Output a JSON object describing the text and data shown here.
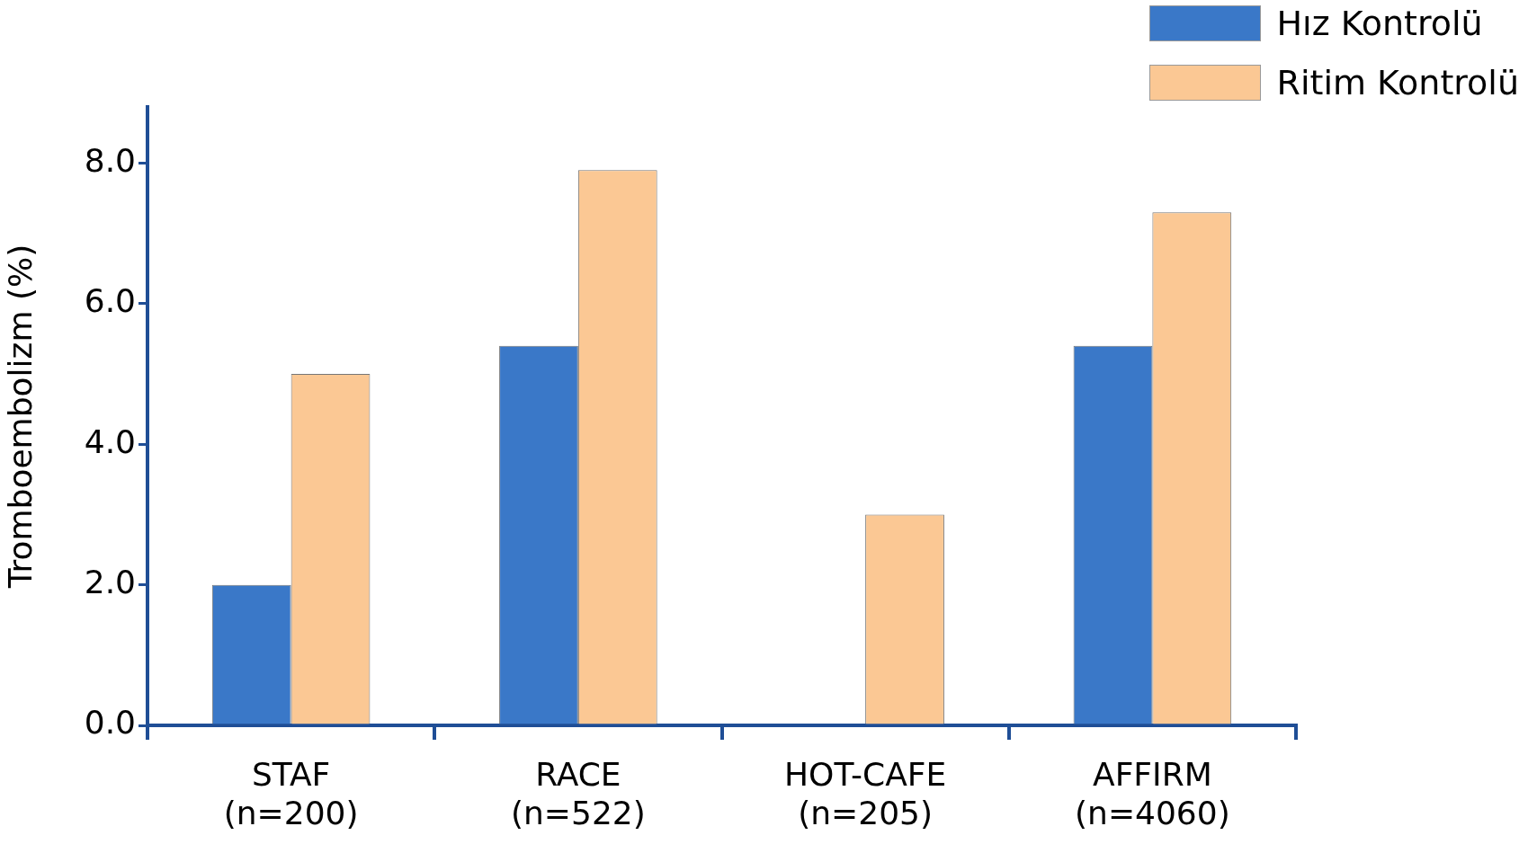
{
  "chart_data": {
    "type": "bar",
    "ylabel": "Tromboembolizm (%)",
    "categories": [
      "STAF\n(n=200)",
      "RACE\n(n=522)",
      "HOT-CAFE\n(n=205)",
      "AFFIRM\n(n=4060)"
    ],
    "series": [
      {
        "name": "Hız Kontrolü",
        "color": "#3a78c8",
        "values": [
          2.0,
          5.4,
          null,
          5.4
        ]
      },
      {
        "name": "Ritim Kontrolü",
        "color": "#fbc894",
        "values": [
          5.0,
          7.9,
          3.0,
          7.3
        ]
      }
    ],
    "ylim": [
      0,
      8.8
    ],
    "yticks": [
      {
        "value": 0,
        "label": "0.0"
      },
      {
        "value": 2,
        "label": "2.0"
      },
      {
        "value": 4,
        "label": "4.0"
      },
      {
        "value": 6,
        "label": "6.0"
      },
      {
        "value": 8,
        "label": "8.0"
      }
    ],
    "grid": false,
    "legend": "top right"
  }
}
